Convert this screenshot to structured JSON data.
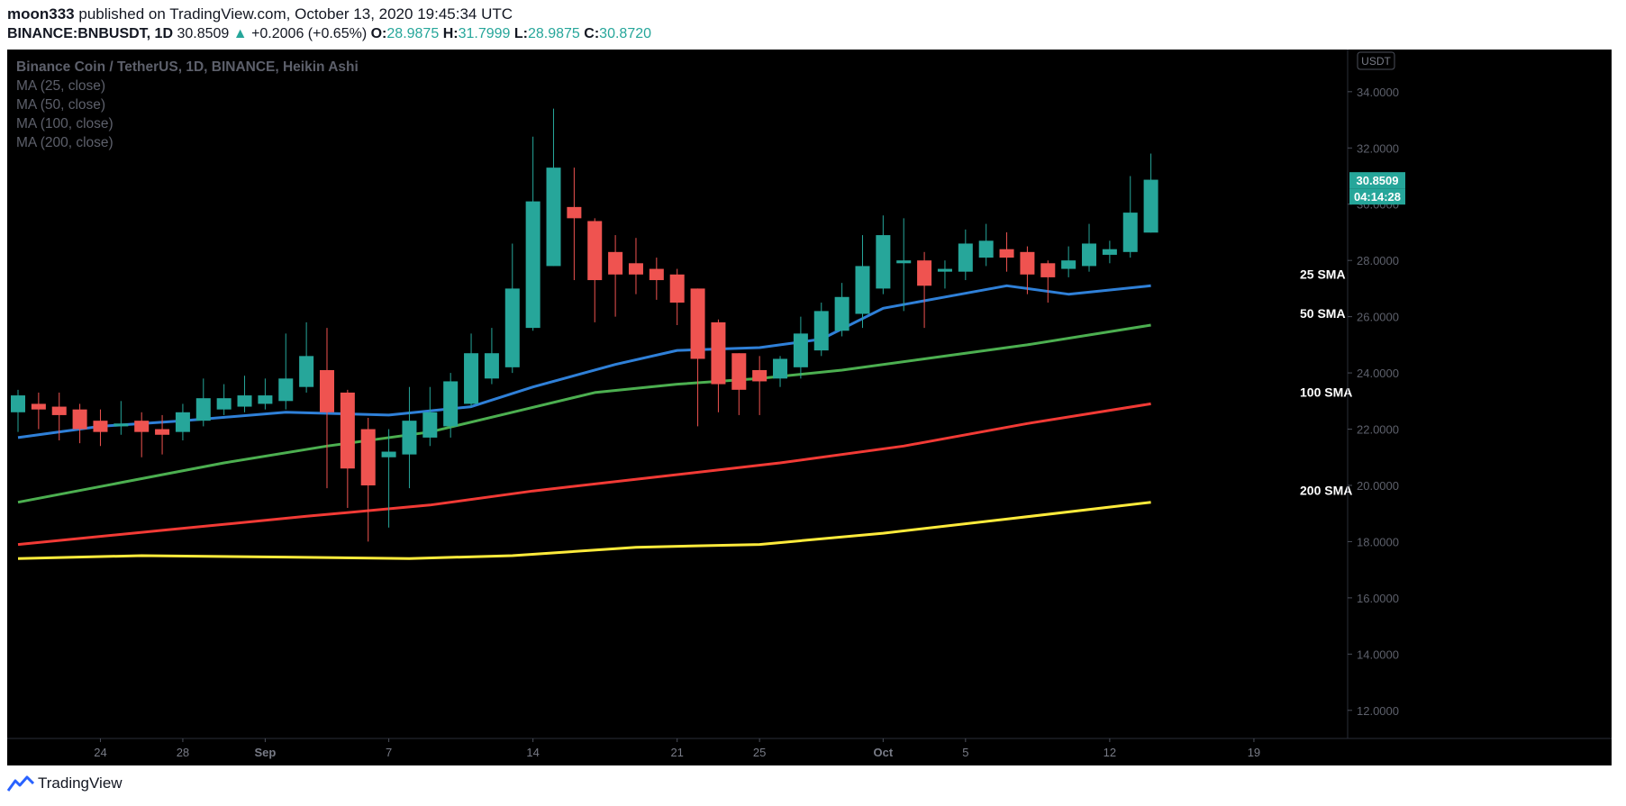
{
  "header": {
    "author": "moon333",
    "published": "published on TradingView.com, October 13, 2020 19:45:34 UTC",
    "symbol": "BINANCE:BNBUSDT, 1D",
    "last": "30.8509",
    "change_arrow": "▲",
    "change": "+0.2006 (+0.65%)",
    "o_label": "O:",
    "o": "28.9875",
    "h_label": "H:",
    "h": "31.7999",
    "l_label": "L:",
    "l": "28.9875",
    "c_label": "C:",
    "c": "30.8720"
  },
  "legend": {
    "title": "Binance Coin / TetherUS, 1D, BINANCE, Heikin Ashi",
    "ma": [
      "MA (25, close)",
      "MA (50, close)",
      "MA (100, close)",
      "MA (200, close)"
    ]
  },
  "footer": {
    "brand": "TradingView",
    "logo_icon": "tradingview-logo-icon"
  },
  "colors": {
    "up": "#26a69a",
    "down": "#ef5350",
    "sma25": "#2f80d8",
    "sma50": "#4caf50",
    "sma100": "#f23a35",
    "sma200": "#ffeb3b"
  },
  "chart_data": {
    "type": "candlestick",
    "title": "Binance Coin / TetherUS, 1D, BINANCE, Heikin Ashi",
    "currency": "USDT",
    "ylim": [
      11,
      35.5
    ],
    "yticks": [
      "12.0000",
      "14.0000",
      "16.0000",
      "18.0000",
      "20.0000",
      "22.0000",
      "24.0000",
      "26.0000",
      "28.0000",
      "30.0000",
      "32.0000",
      "34.0000"
    ],
    "xlim": [
      "2020-08-20",
      "2020-10-26"
    ],
    "xticks": [
      {
        "date": "2020-08-24",
        "label": "24"
      },
      {
        "date": "2020-08-28",
        "label": "28"
      },
      {
        "date": "2020-09-01",
        "label": "Sep"
      },
      {
        "date": "2020-09-07",
        "label": "7"
      },
      {
        "date": "2020-09-14",
        "label": "14"
      },
      {
        "date": "2020-09-21",
        "label": "21"
      },
      {
        "date": "2020-09-25",
        "label": "25"
      },
      {
        "date": "2020-10-01",
        "label": "Oct"
      },
      {
        "date": "2020-10-05",
        "label": "5"
      },
      {
        "date": "2020-10-12",
        "label": "12"
      },
      {
        "date": "2020-10-19",
        "label": "19"
      }
    ],
    "candles": [
      {
        "date": "2020-08-20",
        "o": 22.6,
        "h": 23.4,
        "l": 21.9,
        "c": 23.2
      },
      {
        "date": "2020-08-21",
        "o": 22.9,
        "h": 23.3,
        "l": 22.0,
        "c": 22.7
      },
      {
        "date": "2020-08-22",
        "o": 22.8,
        "h": 23.3,
        "l": 21.6,
        "c": 22.5
      },
      {
        "date": "2020-08-23",
        "o": 22.7,
        "h": 22.9,
        "l": 21.5,
        "c": 22.0
      },
      {
        "date": "2020-08-24",
        "o": 22.3,
        "h": 22.7,
        "l": 21.4,
        "c": 21.9
      },
      {
        "date": "2020-08-25",
        "o": 22.1,
        "h": 23.0,
        "l": 21.8,
        "c": 22.2
      },
      {
        "date": "2020-08-26",
        "o": 22.3,
        "h": 22.6,
        "l": 21.0,
        "c": 21.9
      },
      {
        "date": "2020-08-27",
        "o": 22.0,
        "h": 22.5,
        "l": 21.1,
        "c": 21.8
      },
      {
        "date": "2020-08-28",
        "o": 21.9,
        "h": 22.9,
        "l": 21.6,
        "c": 22.6
      },
      {
        "date": "2020-08-29",
        "o": 22.3,
        "h": 23.8,
        "l": 22.1,
        "c": 23.1
      },
      {
        "date": "2020-08-30",
        "o": 22.7,
        "h": 23.6,
        "l": 22.5,
        "c": 23.1
      },
      {
        "date": "2020-08-31",
        "o": 22.8,
        "h": 23.9,
        "l": 22.6,
        "c": 23.2
      },
      {
        "date": "2020-09-01",
        "o": 22.9,
        "h": 23.8,
        "l": 22.7,
        "c": 23.2
      },
      {
        "date": "2020-09-02",
        "o": 23.0,
        "h": 25.4,
        "l": 22.7,
        "c": 23.8
      },
      {
        "date": "2020-09-03",
        "o": 23.5,
        "h": 25.8,
        "l": 23.3,
        "c": 24.6
      },
      {
        "date": "2020-09-04",
        "o": 24.1,
        "h": 25.6,
        "l": 19.9,
        "c": 22.6
      },
      {
        "date": "2020-09-05",
        "o": 23.3,
        "h": 23.4,
        "l": 19.2,
        "c": 20.6
      },
      {
        "date": "2020-09-06",
        "o": 22.0,
        "h": 22.4,
        "l": 18.0,
        "c": 20.0
      },
      {
        "date": "2020-09-07",
        "o": 21.0,
        "h": 22.0,
        "l": 18.5,
        "c": 21.2
      },
      {
        "date": "2020-09-08",
        "o": 21.1,
        "h": 23.5,
        "l": 19.9,
        "c": 22.3
      },
      {
        "date": "2020-09-09",
        "o": 21.7,
        "h": 23.5,
        "l": 21.4,
        "c": 22.6
      },
      {
        "date": "2020-09-10",
        "o": 22.1,
        "h": 24.0,
        "l": 21.7,
        "c": 23.7
      },
      {
        "date": "2020-09-11",
        "o": 22.9,
        "h": 25.4,
        "l": 22.8,
        "c": 24.7
      },
      {
        "date": "2020-09-12",
        "o": 23.8,
        "h": 25.6,
        "l": 23.6,
        "c": 24.7
      },
      {
        "date": "2020-09-13",
        "o": 24.2,
        "h": 28.6,
        "l": 24.0,
        "c": 27.0
      },
      {
        "date": "2020-09-14",
        "o": 25.6,
        "h": 32.4,
        "l": 25.5,
        "c": 30.1
      },
      {
        "date": "2020-09-15",
        "o": 27.8,
        "h": 33.4,
        "l": 27.8,
        "c": 31.3
      },
      {
        "date": "2020-09-16",
        "o": 29.9,
        "h": 31.3,
        "l": 27.3,
        "c": 29.5
      },
      {
        "date": "2020-09-17",
        "o": 29.4,
        "h": 29.5,
        "l": 25.8,
        "c": 27.3
      },
      {
        "date": "2020-09-18",
        "o": 28.3,
        "h": 28.9,
        "l": 26.0,
        "c": 27.5
      },
      {
        "date": "2020-09-19",
        "o": 27.9,
        "h": 28.8,
        "l": 26.8,
        "c": 27.5
      },
      {
        "date": "2020-09-20",
        "o": 27.7,
        "h": 28.1,
        "l": 26.6,
        "c": 27.3
      },
      {
        "date": "2020-09-21",
        "o": 27.5,
        "h": 27.7,
        "l": 25.7,
        "c": 26.5
      },
      {
        "date": "2020-09-22",
        "o": 27.0,
        "h": 27.0,
        "l": 22.1,
        "c": 24.5
      },
      {
        "date": "2020-09-23",
        "o": 25.8,
        "h": 25.9,
        "l": 22.6,
        "c": 23.6
      },
      {
        "date": "2020-09-24",
        "o": 24.7,
        "h": 24.7,
        "l": 22.5,
        "c": 23.4
      },
      {
        "date": "2020-09-25",
        "o": 24.1,
        "h": 24.6,
        "l": 22.5,
        "c": 23.7
      },
      {
        "date": "2020-09-26",
        "o": 23.8,
        "h": 24.6,
        "l": 23.5,
        "c": 24.5
      },
      {
        "date": "2020-09-27",
        "o": 24.2,
        "h": 26.0,
        "l": 23.8,
        "c": 25.4
      },
      {
        "date": "2020-09-28",
        "o": 24.8,
        "h": 26.5,
        "l": 24.6,
        "c": 26.2
      },
      {
        "date": "2020-09-29",
        "o": 25.5,
        "h": 27.2,
        "l": 25.3,
        "c": 26.7
      },
      {
        "date": "2020-09-30",
        "o": 26.1,
        "h": 28.9,
        "l": 25.6,
        "c": 27.8
      },
      {
        "date": "2020-10-01",
        "o": 27.0,
        "h": 29.6,
        "l": 26.8,
        "c": 28.9
      },
      {
        "date": "2020-10-02",
        "o": 27.9,
        "h": 29.5,
        "l": 26.2,
        "c": 28.0
      },
      {
        "date": "2020-10-03",
        "o": 28.0,
        "h": 28.3,
        "l": 25.6,
        "c": 27.1
      },
      {
        "date": "2020-10-04",
        "o": 27.6,
        "h": 28.0,
        "l": 27.0,
        "c": 27.7
      },
      {
        "date": "2020-10-05",
        "o": 27.6,
        "h": 29.1,
        "l": 27.3,
        "c": 28.6
      },
      {
        "date": "2020-10-06",
        "o": 28.1,
        "h": 29.3,
        "l": 27.8,
        "c": 28.7
      },
      {
        "date": "2020-10-07",
        "o": 28.4,
        "h": 29.0,
        "l": 27.6,
        "c": 28.1
      },
      {
        "date": "2020-10-08",
        "o": 28.3,
        "h": 28.5,
        "l": 26.8,
        "c": 27.5
      },
      {
        "date": "2020-10-09",
        "o": 27.9,
        "h": 28.0,
        "l": 26.5,
        "c": 27.4
      },
      {
        "date": "2020-10-10",
        "o": 27.7,
        "h": 28.5,
        "l": 27.4,
        "c": 28.0
      },
      {
        "date": "2020-10-11",
        "o": 27.8,
        "h": 29.3,
        "l": 27.6,
        "c": 28.6
      },
      {
        "date": "2020-10-12",
        "o": 28.2,
        "h": 28.7,
        "l": 27.9,
        "c": 28.4
      },
      {
        "date": "2020-10-13",
        "o": 28.3,
        "h": 31.0,
        "l": 28.1,
        "c": 29.7
      },
      {
        "date": "2020-10-14",
        "o": 28.99,
        "h": 31.8,
        "l": 28.99,
        "c": 30.87
      }
    ],
    "series": [
      {
        "name": "25 SMA",
        "color": "#2f80d8",
        "x": [
          "2020-08-20",
          "2020-08-24",
          "2020-08-28",
          "2020-09-02",
          "2020-09-07",
          "2020-09-11",
          "2020-09-14",
          "2020-09-18",
          "2020-09-21",
          "2020-09-25",
          "2020-09-28",
          "2020-10-01",
          "2020-10-04",
          "2020-10-07",
          "2020-10-10",
          "2020-10-14"
        ],
        "y": [
          21.7,
          22.1,
          22.3,
          22.6,
          22.5,
          22.8,
          23.5,
          24.3,
          24.8,
          24.9,
          25.2,
          26.3,
          26.7,
          27.1,
          26.8,
          27.1
        ]
      },
      {
        "name": "50 SMA",
        "color": "#4caf50",
        "x": [
          "2020-08-20",
          "2020-08-25",
          "2020-08-30",
          "2020-09-04",
          "2020-09-09",
          "2020-09-13",
          "2020-09-17",
          "2020-09-21",
          "2020-09-25",
          "2020-09-29",
          "2020-10-03",
          "2020-10-08",
          "2020-10-14"
        ],
        "y": [
          19.4,
          20.1,
          20.8,
          21.4,
          21.9,
          22.6,
          23.3,
          23.6,
          23.8,
          24.1,
          24.5,
          25.0,
          25.7
        ]
      },
      {
        "name": "100 SMA",
        "color": "#f23a35",
        "x": [
          "2020-08-20",
          "2020-08-27",
          "2020-09-03",
          "2020-09-09",
          "2020-09-14",
          "2020-09-20",
          "2020-09-26",
          "2020-10-02",
          "2020-10-08",
          "2020-10-14"
        ],
        "y": [
          17.9,
          18.4,
          18.9,
          19.3,
          19.8,
          20.3,
          20.8,
          21.4,
          22.2,
          22.9
        ]
      },
      {
        "name": "200 SMA",
        "color": "#ffeb3b",
        "x": [
          "2020-08-20",
          "2020-08-26",
          "2020-09-02",
          "2020-09-08",
          "2020-09-13",
          "2020-09-19",
          "2020-09-25",
          "2020-10-01",
          "2020-10-07",
          "2020-10-14"
        ],
        "y": [
          17.4,
          17.5,
          17.45,
          17.4,
          17.5,
          17.8,
          17.9,
          18.3,
          18.8,
          19.4
        ]
      }
    ],
    "sma_labels": [
      "25 SMA",
      "50 SMA",
      "100 SMA",
      "200 SMA"
    ],
    "price_label": "30.8509",
    "countdown": "04:14:28",
    "grid": false,
    "legend_position": "top-left"
  }
}
